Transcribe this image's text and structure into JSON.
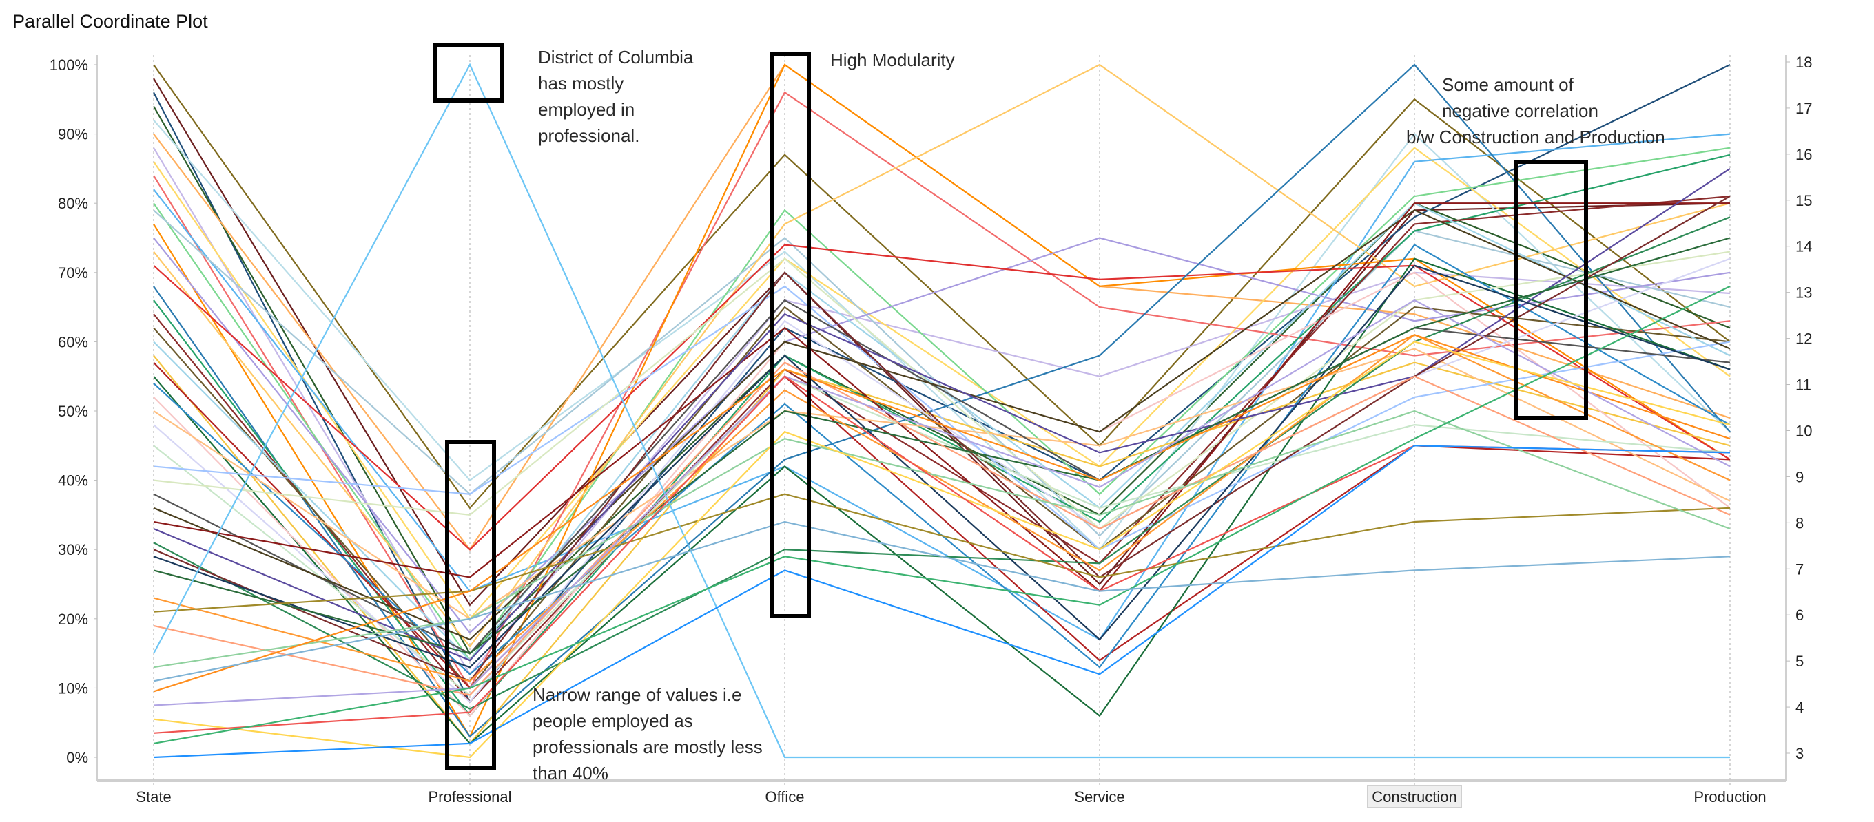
{
  "chart_data": {
    "type": "parallel-coordinates",
    "title": "Parallel Coordinate Plot",
    "axes": [
      "State",
      "Professional",
      "Office",
      "Service",
      "Construction",
      "Production"
    ],
    "highlighted_axis": "Construction",
    "left_ticks": [
      "0%",
      "10%",
      "20%",
      "30%",
      "40%",
      "50%",
      "60%",
      "70%",
      "80%",
      "90%",
      "100%"
    ],
    "right_ticks": [
      "3",
      "4",
      "5",
      "6",
      "7",
      "8",
      "9",
      "10",
      "11",
      "12",
      "13",
      "14",
      "15",
      "16",
      "17",
      "18"
    ],
    "ylim": [
      0,
      100
    ],
    "grid": false,
    "lines": [
      {
        "color": "#7f6a1e",
        "values": [
          100,
          36,
          87,
          45,
          95,
          60
        ]
      },
      {
        "color": "#6b1f1f",
        "values": [
          98,
          22,
          70,
          25,
          79,
          80
        ]
      },
      {
        "color": "#1f4e79",
        "values": [
          96,
          8,
          62,
          40,
          78,
          100
        ]
      },
      {
        "color": "#2c5f2d",
        "values": [
          94,
          15,
          58,
          35,
          80,
          62
        ]
      },
      {
        "color": "#b8dde8",
        "values": [
          92,
          40,
          73,
          30,
          90,
          47
        ]
      },
      {
        "color": "#ffae5c",
        "values": [
          90,
          30,
          100,
          68,
          64,
          49
        ]
      },
      {
        "color": "#c5b8e8",
        "values": [
          88,
          12,
          66,
          55,
          70,
          67
        ]
      },
      {
        "color": "#ffd966",
        "values": [
          86,
          20,
          72,
          42,
          88,
          55
        ]
      },
      {
        "color": "#f26b6b",
        "values": [
          84,
          10,
          96,
          65,
          58,
          63
        ]
      },
      {
        "color": "#5ab4f0",
        "values": [
          82,
          24,
          42,
          17,
          86,
          90
        ]
      },
      {
        "color": "#7bd88f",
        "values": [
          80,
          14,
          79,
          38,
          81,
          88
        ]
      },
      {
        "color": "#a6c8d8",
        "values": [
          79,
          38,
          75,
          32,
          76,
          65
        ]
      },
      {
        "color": "#ff8c00",
        "values": [
          77,
          3,
          100,
          68,
          72,
          43
        ]
      },
      {
        "color": "#a89be0",
        "values": [
          75,
          18,
          60,
          75,
          63,
          70
        ]
      },
      {
        "color": "#ffc966",
        "values": [
          73,
          16,
          77,
          100,
          68,
          80
        ]
      },
      {
        "color": "#e03030",
        "values": [
          71,
          30,
          74,
          69,
          71,
          43
        ]
      },
      {
        "color": "#2a7ab0",
        "values": [
          68,
          3,
          43,
          58,
          100,
          47
        ]
      },
      {
        "color": "#26a269",
        "values": [
          66,
          6,
          58,
          34,
          76,
          87
        ]
      },
      {
        "color": "#8b2c2c",
        "values": [
          64,
          8,
          56,
          28,
          77,
          81
        ]
      },
      {
        "color": "#6b5a2e",
        "values": [
          62,
          10,
          65,
          30,
          65,
          60
        ]
      },
      {
        "color": "#9fd4e8",
        "values": [
          60,
          14,
          70,
          36,
          80,
          58
        ]
      },
      {
        "color": "#f5c542",
        "values": [
          58,
          2,
          56,
          42,
          57,
          45
        ]
      },
      {
        "color": "#b22222",
        "values": [
          57,
          10,
          55,
          14,
          45,
          43
        ]
      },
      {
        "color": "#1a6e3a",
        "values": [
          55,
          2,
          42,
          6,
          72,
          56
        ]
      },
      {
        "color": "#2d8ac7",
        "values": [
          54,
          12,
          51,
          13,
          74,
          48
        ]
      },
      {
        "color": "#f7c6c6",
        "values": [
          52,
          6,
          60,
          47,
          70,
          36
        ]
      },
      {
        "color": "#ffbf80",
        "values": [
          50,
          20,
          50,
          45,
          59,
          37
        ]
      },
      {
        "color": "#d6d6f5",
        "values": [
          48,
          8,
          63,
          33,
          55,
          72
        ]
      },
      {
        "color": "#c8e6c9",
        "values": [
          45,
          9,
          55,
          36,
          48,
          44
        ]
      },
      {
        "color": "#a0c4ff",
        "values": [
          42,
          38,
          68,
          30,
          52,
          60
        ]
      },
      {
        "color": "#d8e8c0",
        "values": [
          40,
          35,
          72,
          33,
          66,
          73
        ]
      },
      {
        "color": "#555555",
        "values": [
          38,
          15,
          66,
          40,
          62,
          57
        ]
      },
      {
        "color": "#4a3f1f",
        "values": [
          36,
          17,
          60,
          47,
          79,
          59
        ]
      },
      {
        "color": "#8b1a1a",
        "values": [
          34,
          26,
          62,
          24,
          80,
          80
        ]
      },
      {
        "color": "#5a4a9e",
        "values": [
          33,
          14,
          64,
          44,
          55,
          85
        ]
      },
      {
        "color": "#2e8b57",
        "values": [
          31,
          7,
          30,
          28,
          60,
          78
        ]
      },
      {
        "color": "#7b2d2d",
        "values": [
          30,
          11,
          70,
          26,
          55,
          81
        ]
      },
      {
        "color": "#1b3a5c",
        "values": [
          29,
          13,
          58,
          17,
          71,
          56
        ]
      },
      {
        "color": "#2a6b3a",
        "values": [
          27,
          15,
          50,
          40,
          62,
          75
        ]
      },
      {
        "color": "#ff9933",
        "values": [
          23,
          11,
          53,
          27,
          61,
          40
        ]
      },
      {
        "color": "#a08a2a",
        "values": [
          21,
          24,
          38,
          26,
          34,
          36
        ]
      },
      {
        "color": "#ffa07a",
        "values": [
          19,
          9,
          57,
          33,
          55,
          35
        ]
      },
      {
        "color": "#6ec6f5",
        "values": [
          15,
          100,
          0,
          0,
          0,
          0
        ]
      },
      {
        "color": "#8fd19e",
        "values": [
          13,
          20,
          46,
          35,
          50,
          33
        ]
      },
      {
        "color": "#ff8c1a",
        "values": [
          9.5,
          24,
          56,
          40,
          61,
          46
        ]
      },
      {
        "color": "#b0a4e3",
        "values": [
          7.5,
          10,
          55,
          39,
          66,
          42
        ]
      },
      {
        "color": "#ffd54f",
        "values": [
          5.5,
          0,
          47,
          30,
          60,
          48
        ]
      },
      {
        "color": "#ef5350",
        "values": [
          3.5,
          6.5,
          55,
          24,
          45,
          44
        ]
      },
      {
        "color": "#3cb371",
        "values": [
          2,
          10,
          29,
          22,
          46,
          68
        ]
      },
      {
        "color": "#1e90ff",
        "values": [
          0,
          2,
          27,
          12,
          45,
          44
        ]
      },
      {
        "color": "#7fb3d5",
        "values": [
          11,
          20,
          34,
          24,
          27,
          29
        ]
      }
    ],
    "annotations": [
      {
        "lines": [
          "District of Columbia",
          "has mostly",
          "employed in",
          "professional."
        ]
      },
      {
        "lines": [
          "High Modularity"
        ]
      },
      {
        "lines": [
          "Some amount of",
          "negative correlation",
          "b/w Construction and Production"
        ]
      },
      {
        "lines": [
          "Narrow range of values i.e",
          "people employed as",
          "professionals are mostly less",
          "than 40%"
        ]
      }
    ]
  }
}
